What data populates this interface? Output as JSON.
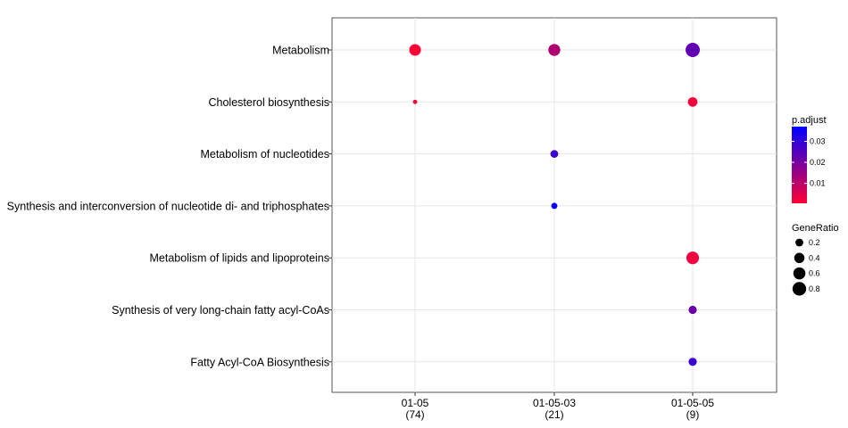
{
  "chart_data": {
    "type": "scatter",
    "categories_y": [
      "Metabolism",
      "Cholesterol biosynthesis",
      "Metabolism of nucleotides",
      "Synthesis and interconversion of nucleotide di- and triphosphates",
      "Metabolism of lipids and lipoproteins",
      "Synthesis of very long-chain fatty acyl-CoAs",
      "Fatty Acyl-CoA Biosynthesis"
    ],
    "categories_x": [
      {
        "label": "01-05",
        "count": "(74)"
      },
      {
        "label": "01-05-03",
        "count": "(21)"
      },
      {
        "label": "01-05-05",
        "count": "(9)"
      }
    ],
    "points": [
      {
        "x": 0,
        "y": 0,
        "gene_ratio": 0.55,
        "p_adjust": 0.001
      },
      {
        "x": 1,
        "y": 0,
        "gene_ratio": 0.58,
        "p_adjust": 0.012
      },
      {
        "x": 2,
        "y": 0,
        "gene_ratio": 0.89,
        "p_adjust": 0.023
      },
      {
        "x": 0,
        "y": 1,
        "gene_ratio": 0.03,
        "p_adjust": 0.001
      },
      {
        "x": 2,
        "y": 1,
        "gene_ratio": 0.33,
        "p_adjust": 0.002
      },
      {
        "x": 1,
        "y": 2,
        "gene_ratio": 0.19,
        "p_adjust": 0.028
      },
      {
        "x": 1,
        "y": 3,
        "gene_ratio": 0.1,
        "p_adjust": 0.036
      },
      {
        "x": 2,
        "y": 4,
        "gene_ratio": 0.67,
        "p_adjust": 0.003
      },
      {
        "x": 2,
        "y": 5,
        "gene_ratio": 0.22,
        "p_adjust": 0.022
      },
      {
        "x": 2,
        "y": 6,
        "gene_ratio": 0.22,
        "p_adjust": 0.029
      }
    ],
    "color_legend": {
      "title": "p.adjust",
      "ticks": [
        0.01,
        0.02,
        0.03
      ],
      "tick_labels": [
        "0.01",
        "0.02",
        "0.03"
      ],
      "range": [
        0.0005,
        0.037
      ],
      "low_color": "#ff0033",
      "high_color": "#0000ff"
    },
    "size_legend": {
      "title": "GeneRatio",
      "values": [
        0.2,
        0.4,
        0.6,
        0.8
      ],
      "labels": [
        "0.2",
        "0.4",
        "0.6",
        "0.8"
      ]
    },
    "grid": true,
    "legend_position": "right"
  }
}
